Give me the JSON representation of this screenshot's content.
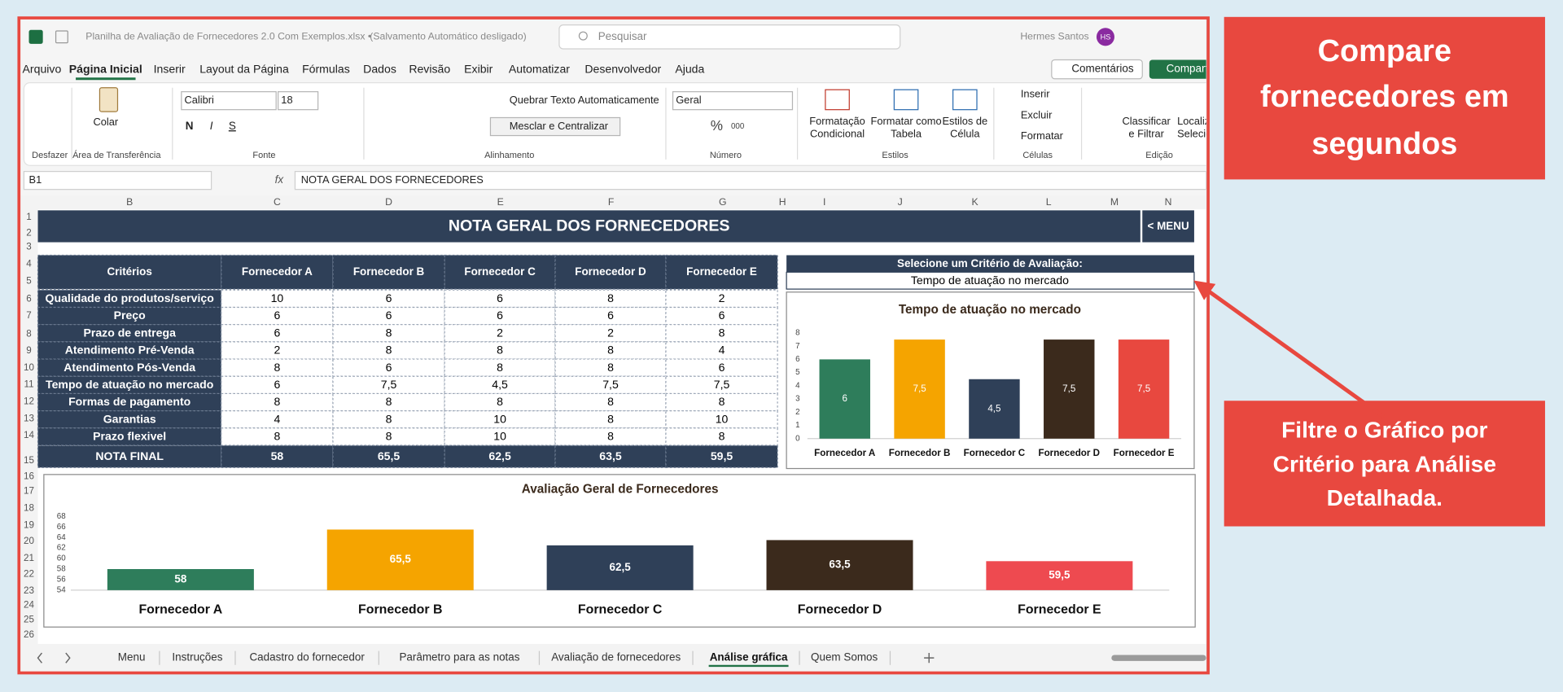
{
  "window": {
    "title": "Planilha de Avaliação de Fornecedores 2.0 Com Exemplos.xlsx •",
    "status": "(Salvamento Automático desligado)",
    "search": "Pesquisar",
    "user": "Hermes Santos",
    "initials": "HS",
    "comments": "Comentários",
    "share": "Compartilhar"
  },
  "ribbon": {
    "tabs": [
      "Arquivo",
      "Página Inicial",
      "Inserir",
      "Layout da Página",
      "Fórmulas",
      "Dados",
      "Revisão",
      "Exibir",
      "Automatizar",
      "Desenvolvedor",
      "Ajuda"
    ],
    "active": 1,
    "groups": [
      "Desfazer",
      "Área de Transferência",
      "Fonte",
      "Alinhamento",
      "Número",
      "Estilos",
      "Células",
      "Edição"
    ],
    "paste": "Colar",
    "font": "Calibri",
    "font_size": "18",
    "font_styles": [
      "N",
      "I",
      "S"
    ],
    "wrap_text": "Quebrar Texto Automaticamente",
    "merge": "Mesclar e Centralizar",
    "number_format": "Geral",
    "number_buttons": [
      "%",
      "000"
    ],
    "styles": [
      [
        "Formatação",
        "Condicional"
      ],
      [
        "Formatar como",
        "Tabela"
      ],
      [
        "Estilos de",
        "Célula"
      ]
    ],
    "cells": [
      "Inserir",
      "Excluir",
      "Formatar"
    ],
    "editing": [
      [
        "Classificar",
        "e Filtrar"
      ],
      [
        "Localizar e",
        "Selecionar"
      ]
    ]
  },
  "formula_bar": {
    "cell": "B1",
    "fx": "fx",
    "content": "NOTA GERAL DOS FORNECEDORES"
  },
  "columns": [
    "B",
    "C",
    "D",
    "E",
    "F",
    "G",
    "H",
    "I",
    "J",
    "K",
    "L",
    "M",
    "N"
  ],
  "row_numbers": [
    1,
    2,
    3,
    4,
    5,
    6,
    7,
    8,
    9,
    10,
    11,
    12,
    13,
    14,
    15,
    16,
    17,
    18,
    19,
    20,
    21,
    22,
    23,
    24,
    25,
    26
  ],
  "sheet": {
    "title": "NOTA GERAL DOS FORNECEDORES",
    "menu": "< MENU",
    "table": {
      "header": [
        "Critérios",
        "Fornecedor A",
        "Fornecedor B",
        "Fornecedor C",
        "Fornecedor D",
        "Fornecedor E"
      ],
      "rows": [
        [
          "Qualidade do produtos/serviço",
          "10",
          "6",
          "6",
          "8",
          "2"
        ],
        [
          "Preço",
          "6",
          "6",
          "6",
          "6",
          "6"
        ],
        [
          "Prazo de entrega",
          "6",
          "8",
          "2",
          "2",
          "8"
        ],
        [
          "Atendimento Pré-Venda",
          "2",
          "8",
          "8",
          "8",
          "4"
        ],
        [
          "Atendimento Pós-Venda",
          "8",
          "6",
          "8",
          "8",
          "6"
        ],
        [
          "Tempo de atuação no mercado",
          "6",
          "7,5",
          "4,5",
          "7,5",
          "7,5"
        ],
        [
          "Formas de pagamento",
          "8",
          "8",
          "8",
          "8",
          "8"
        ],
        [
          "Garantias",
          "4",
          "8",
          "10",
          "8",
          "10"
        ],
        [
          "Prazo flexivel",
          "8",
          "8",
          "10",
          "8",
          "8"
        ]
      ],
      "footer": [
        "NOTA FINAL",
        "58",
        "65,5",
        "62,5",
        "63,5",
        "59,5"
      ]
    },
    "selector": {
      "label": "Selecione um Critério de Avaliação:",
      "value": "Tempo de atuação no mercado"
    }
  },
  "chart_data": [
    {
      "type": "bar",
      "title": "Tempo de atuação no mercado",
      "categories": [
        "Fornecedor A",
        "Fornecedor B",
        "Fornecedor C",
        "Fornecedor D",
        "Fornecedor E"
      ],
      "values": [
        6,
        7.5,
        4.5,
        7.5,
        7.5
      ],
      "value_labels": [
        "6",
        "7,5",
        "4,5",
        "7,5",
        "7,5"
      ],
      "colors": [
        "#2e7d5b",
        "#f5a400",
        "#2f4058",
        "#3b2a1c",
        "#e8483f"
      ],
      "ylim": [
        0,
        8
      ],
      "yticks": [
        0,
        1,
        2,
        3,
        4,
        5,
        6,
        7,
        8
      ]
    },
    {
      "type": "bar",
      "title": "Avaliação Geral de Fornecedores",
      "categories": [
        "Fornecedor A",
        "Fornecedor B",
        "Fornecedor C",
        "Fornecedor D",
        "Fornecedor E"
      ],
      "values": [
        58,
        65.5,
        62.5,
        63.5,
        59.5
      ],
      "value_labels": [
        "58",
        "65,5",
        "62,5",
        "63,5",
        "59,5"
      ],
      "colors": [
        "#2e7d5b",
        "#f5a400",
        "#2f4058",
        "#3b2a1c",
        "#ee4a50"
      ],
      "ylim": [
        54,
        68
      ],
      "yticks": [
        54,
        56,
        58,
        60,
        62,
        64,
        66,
        68
      ]
    }
  ],
  "sheet_tabs": {
    "names": [
      "Menu",
      "Instruções",
      "Cadastro do fornecedor",
      "Parâmetro para as notas",
      "Avaliação de fornecedores",
      "Análise gráfica",
      "Quem Somos"
    ],
    "active": 5
  },
  "callouts": [
    [
      "Compare",
      "fornecedores em",
      "segundos"
    ],
    [
      "Filtre o Gráfico por",
      "Critério para Análise",
      "Detalhada."
    ]
  ]
}
